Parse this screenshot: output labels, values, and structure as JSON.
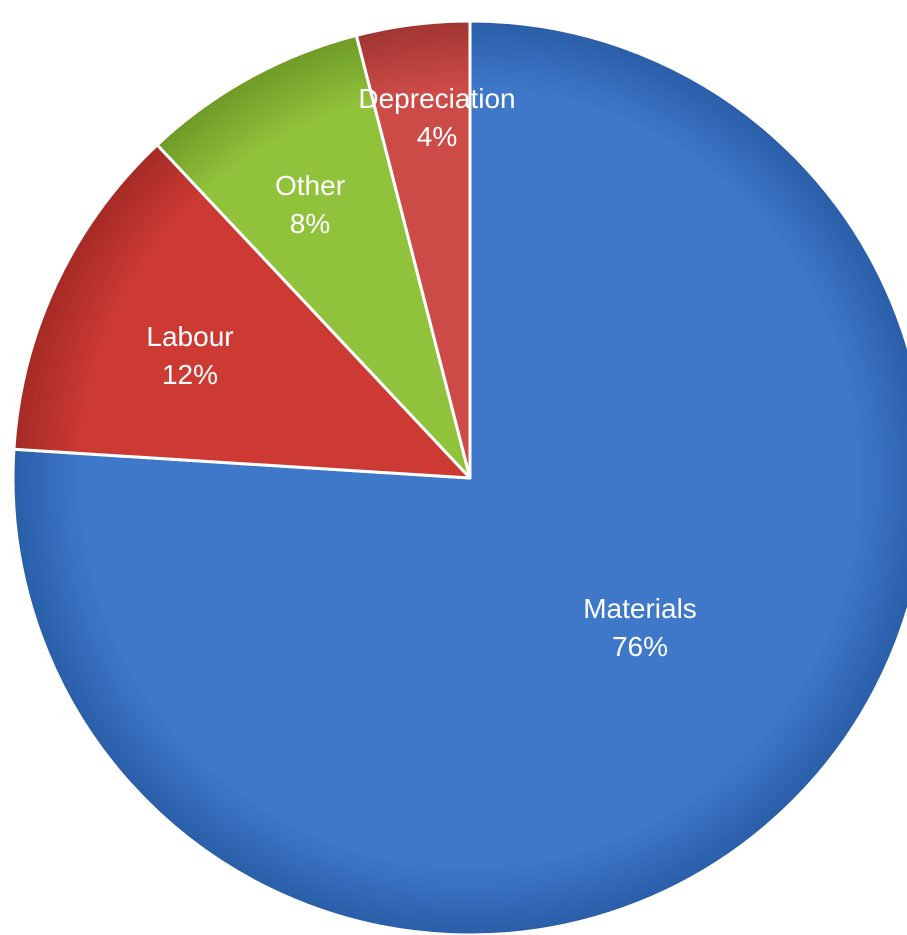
{
  "chart_data": {
    "type": "pie",
    "title": "",
    "start": "top",
    "direction": "clockwise",
    "slices": [
      {
        "label": "Materials",
        "value": 76,
        "value_label": "76%",
        "color": "#3f77c9",
        "edge_color": "#2a5ea8"
      },
      {
        "label": "Labour",
        "value": 12,
        "value_label": "12%",
        "color": "#cd3a34",
        "edge_color": "#a52a25"
      },
      {
        "label": "Other",
        "value": 8,
        "value_label": "8%",
        "color": "#91c23b",
        "edge_color": "#6f9a27"
      },
      {
        "label": "Depreciation",
        "value": 4,
        "value_label": "4%",
        "color": "#cc4b47",
        "edge_color": "#a13532"
      }
    ]
  }
}
